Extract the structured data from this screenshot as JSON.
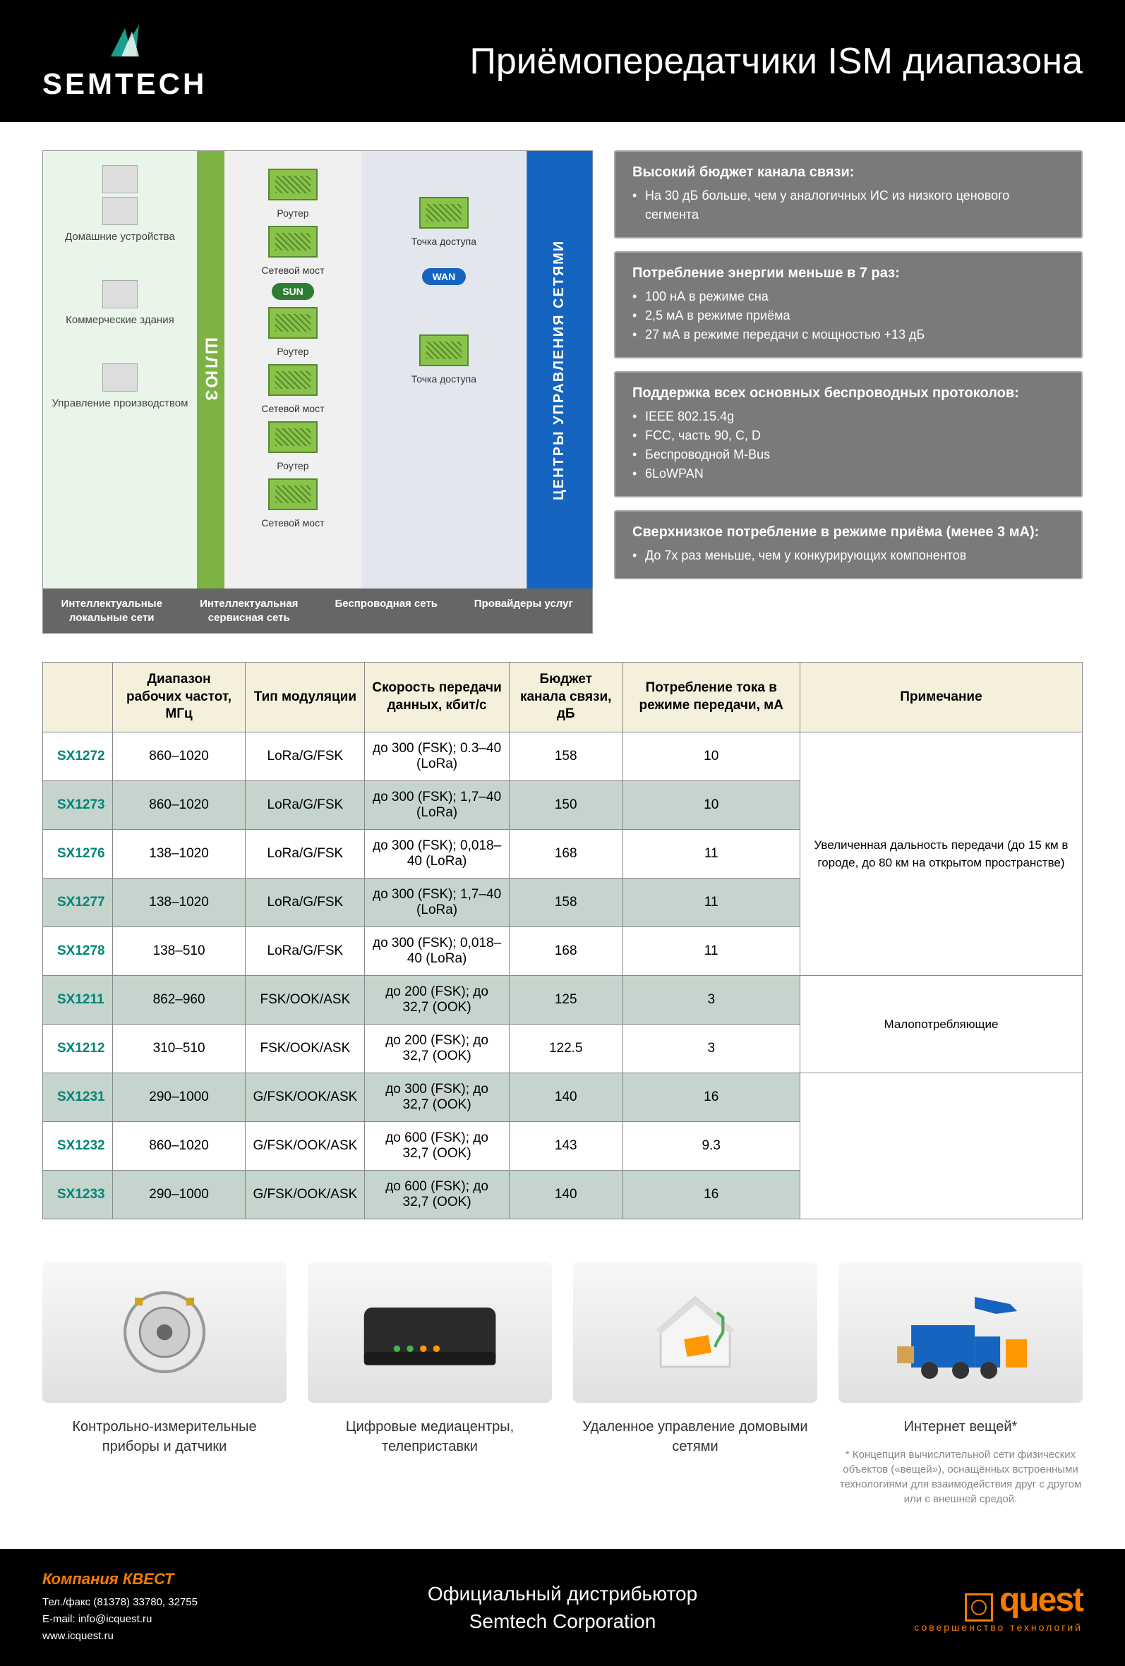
{
  "colors": {
    "black": "#000000",
    "white": "#ffffff",
    "orange": "#f57c00",
    "teal": "#008577",
    "green": "#7cb342",
    "blue": "#1565c0",
    "callout_bg": "#7a7a7a",
    "th_bg": "#f5f0dc",
    "alt_row_bg": "#c5d4cc",
    "border": "#888888"
  },
  "header": {
    "logo_text": "SEMTECH",
    "title": "Приёмопередатчики ISM диапазона"
  },
  "diagram": {
    "gateway_label": "ШЛЮЗ",
    "centers_label": "ЦЕНТРЫ УПРАВЛЕНИЯ СЕТЯМИ",
    "sun_badge": "SUN",
    "wan_badge": "WAN",
    "left_items": [
      "Домашние устройства",
      "Коммерческие здания",
      "Управление производством"
    ],
    "middle_items": [
      {
        "name": "Роутер"
      },
      {
        "name": "Сетевой мост"
      },
      {
        "name": "Роутер"
      },
      {
        "name": "Сетевой мост"
      },
      {
        "name": "Роутер"
      },
      {
        "name": "Сетевой мост"
      }
    ],
    "right_items": [
      {
        "name": "Точка доступа"
      },
      {
        "name": "Точка доступа"
      }
    ],
    "footer": [
      "Интеллектуальные локальные сети",
      "Интеллектуальная сервисная сеть",
      "Беспроводная сеть",
      "Провайдеры услуг"
    ]
  },
  "callouts": [
    {
      "title": "Высокий бюджет канала связи:",
      "items": [
        "На 30 дБ больше, чем у аналогичных ИС из низкого ценового сегмента"
      ]
    },
    {
      "title": "Потребление энергии меньше в 7 раз:",
      "items": [
        "100 нА в режиме сна",
        "2,5 мА в режиме приёма",
        "27 мА в режиме передачи с мощностью +13 дБ"
      ]
    },
    {
      "title": "Поддержка всех основных беспроводных протоколов:",
      "items": [
        "IEEE 802.15.4g",
        "FCC, часть 90, C, D",
        "Беспроводной M-Bus",
        "6LoWPAN"
      ]
    },
    {
      "title": "Сверхнизкое потребление в режиме приёма (менее 3 мА):",
      "items": [
        "До 7х раз меньше, чем у конкурирующих компонентов"
      ]
    }
  ],
  "table": {
    "columns": [
      "",
      "Диапазон рабочих частот, МГц",
      "Тип модуляции",
      "Скорость передачи данных, кбит/с",
      "Бюджет канала связи, дБ",
      "Потребление тока в режиме передачи, мА",
      "Примечание"
    ],
    "rows": [
      {
        "part": "SX1272",
        "freq": "860–1020",
        "mod": "LoRa/G/FSK",
        "rate": "до 300 (FSK); 0.3–40 (LoRa)",
        "budget": "158",
        "current": "10",
        "alt": false,
        "note_group": 1
      },
      {
        "part": "SX1273",
        "freq": "860–1020",
        "mod": "LoRa/G/FSK",
        "rate": "до 300 (FSK); 1,7–40 (LoRa)",
        "budget": "150",
        "current": "10",
        "alt": true,
        "note_group": 1
      },
      {
        "part": "SX1276",
        "freq": "138–1020",
        "mod": "LoRa/G/FSK",
        "rate": "до 300 (FSK); 0,018–40 (LoRa)",
        "budget": "168",
        "current": "11",
        "alt": false,
        "note_group": 1
      },
      {
        "part": "SX1277",
        "freq": "138–1020",
        "mod": "LoRa/G/FSK",
        "rate": "до 300 (FSK); 1,7–40 (LoRa)",
        "budget": "158",
        "current": "11",
        "alt": true,
        "note_group": 1
      },
      {
        "part": "SX1278",
        "freq": "138–510",
        "mod": "LoRa/G/FSK",
        "rate": "до 300 (FSK); 0,018–40 (LoRa)",
        "budget": "168",
        "current": "11",
        "alt": false,
        "note_group": 1
      },
      {
        "part": "SX1211",
        "freq": "862–960",
        "mod": "FSK/OOK/ASK",
        "rate": "до 200 (FSK); до 32,7 (OOK)",
        "budget": "125",
        "current": "3",
        "alt": true,
        "note_group": 2
      },
      {
        "part": "SX1212",
        "freq": "310–510",
        "mod": "FSK/OOK/ASK",
        "rate": "до 200 (FSK); до 32,7 (OOK)",
        "budget": "122.5",
        "current": "3",
        "alt": false,
        "note_group": 2
      },
      {
        "part": "SX1231",
        "freq": "290–1000",
        "mod": "G/FSK/OOK/ASK",
        "rate": "до 300 (FSK); до 32,7 (OOK)",
        "budget": "140",
        "current": "16",
        "alt": true,
        "note_group": 3
      },
      {
        "part": "SX1232",
        "freq": "860–1020",
        "mod": "G/FSK/OOK/ASK",
        "rate": "до 600 (FSK); до 32,7 (OOK)",
        "budget": "143",
        "current": "9.3",
        "alt": false,
        "note_group": 3
      },
      {
        "part": "SX1233",
        "freq": "290–1000",
        "mod": "G/FSK/OOK/ASK",
        "rate": "до 600 (FSK); до 32,7 (OOK)",
        "budget": "140",
        "current": "16",
        "alt": true,
        "note_group": 3
      }
    ],
    "notes": {
      "1": "Увеличенная дальность передачи (до 15 км в городе, до 80 км на открытом пространстве)",
      "2": "Малопотребляющие",
      "3": ""
    }
  },
  "applications": [
    {
      "label": "Контрольно-измерительные приборы и датчики",
      "icon": "meter"
    },
    {
      "label": "Цифровые медиацентры, телеприставки",
      "icon": "settop"
    },
    {
      "label": "Удаленное управление домовыми сетями",
      "icon": "house"
    },
    {
      "label": "Интернет вещей*",
      "icon": "logistics",
      "note": "* Концепция вычислительной сети физических объектов («вещей»), оснащённых встроенными технологиями для взаимодействия друг с другом или с внешней средой."
    }
  ],
  "footer": {
    "company": "Компания КВЕСТ",
    "phone_label": "Тел./факс (81378) 33780, 32755",
    "email_label": "E-mail: info@icquest.ru",
    "web_label": "www.icquest.ru",
    "center_line1": "Официальный дистрибьютор",
    "center_line2": "Semtech Corporation",
    "quest_logo": "quest",
    "quest_sub": "совершенство технологий"
  }
}
